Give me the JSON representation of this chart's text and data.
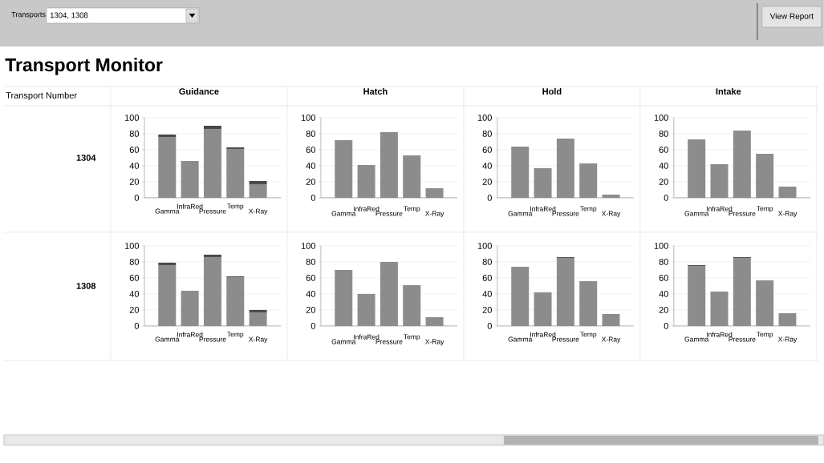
{
  "chart_data": [
    {
      "type": "bar",
      "title": "Guidance",
      "ylabel": "1304",
      "stacked": true,
      "grid": "y",
      "ylim": [
        0,
        100
      ],
      "yticks": [
        0,
        20,
        40,
        60,
        80,
        100
      ],
      "annotations": [
        "Transports",
        "1304, 1308",
        "View Report",
        "Transport Monitor",
        "Transport Number"
      ],
      "categories": [
        "Gamma",
        "InfraRed",
        "Pressure",
        "Temp",
        "X-Ray"
      ],
      "series": [
        {
          "color": "#8c8c8c",
          "values": [
            76,
            46,
            86,
            61,
            17
          ]
        },
        {
          "color": "#474747",
          "values": [
            3,
            0,
            4,
            2,
            4
          ]
        }
      ]
    },
    {
      "type": "bar",
      "title": "Hatch",
      "grid": "y",
      "ylim": [
        0,
        100
      ],
      "yticks": [
        0,
        20,
        40,
        60,
        80,
        100
      ],
      "categories": [
        "Gamma",
        "InfraRed",
        "Pressure",
        "Temp",
        "X-Ray"
      ],
      "series": [
        {
          "color": "#8c8c8c",
          "values": [
            72,
            41,
            82,
            53,
            12
          ]
        }
      ]
    },
    {
      "type": "bar",
      "title": "Hold",
      "grid": "y",
      "ylim": [
        0,
        100
      ],
      "yticks": [
        0,
        20,
        40,
        60,
        80,
        100
      ],
      "categories": [
        "Gamma",
        "InfraRed",
        "Pressure",
        "Temp",
        "X-Ray"
      ],
      "series": [
        {
          "color": "#8c8c8c",
          "values": [
            64,
            37,
            74,
            43,
            4
          ]
        }
      ]
    },
    {
      "type": "bar",
      "title": "Intake",
      "grid": "y",
      "ylim": [
        0,
        100
      ],
      "yticks": [
        0,
        20,
        40,
        60,
        80,
        100
      ],
      "categories": [
        "Gamma",
        "InfraRed",
        "Pressure",
        "Temp",
        "X-Ray"
      ],
      "series": [
        {
          "color": "#8c8c8c",
          "values": [
            73,
            42,
            84,
            55,
            14
          ]
        }
      ]
    },
    {
      "type": "bar",
      "ylabel": "1308",
      "stacked": true,
      "grid": "y",
      "ylim": [
        0,
        100
      ],
      "yticks": [
        0,
        20,
        40,
        60,
        80,
        100
      ],
      "categories": [
        "Gamma",
        "InfraRed",
        "Pressure",
        "Temp",
        "X-Ray"
      ],
      "series": [
        {
          "color": "#8c8c8c",
          "values": [
            76,
            44,
            86,
            61,
            17
          ]
        },
        {
          "color": "#474747",
          "values": [
            3,
            0,
            3,
            1,
            3
          ]
        }
      ]
    },
    {
      "type": "bar",
      "grid": "y",
      "ylim": [
        0,
        100
      ],
      "yticks": [
        0,
        20,
        40,
        60,
        80,
        100
      ],
      "categories": [
        "Gamma",
        "InfraRed",
        "Pressure",
        "Temp",
        "X-Ray"
      ],
      "series": [
        {
          "color": "#8c8c8c",
          "values": [
            70,
            40,
            80,
            51,
            11
          ]
        }
      ]
    },
    {
      "type": "bar",
      "stacked": true,
      "grid": "y",
      "ylim": [
        0,
        100
      ],
      "yticks": [
        0,
        20,
        40,
        60,
        80,
        100
      ],
      "categories": [
        "Gamma",
        "InfraRed",
        "Pressure",
        "Temp",
        "X-Ray"
      ],
      "series": [
        {
          "color": "#8c8c8c",
          "values": [
            74,
            42,
            85,
            56,
            15
          ]
        },
        {
          "color": "#474747",
          "values": [
            0,
            0,
            1,
            0,
            0
          ]
        }
      ]
    },
    {
      "type": "bar",
      "stacked": true,
      "grid": "y",
      "ylim": [
        0,
        100
      ],
      "yticks": [
        0,
        20,
        40,
        60,
        80,
        100
      ],
      "categories": [
        "Gamma",
        "InfraRed",
        "Pressure",
        "Temp",
        "X-Ray"
      ],
      "series": [
        {
          "color": "#8c8c8c",
          "values": [
            75,
            43,
            85,
            57,
            16
          ]
        },
        {
          "color": "#474747",
          "values": [
            1,
            0,
            1,
            0,
            0
          ]
        }
      ]
    }
  ]
}
